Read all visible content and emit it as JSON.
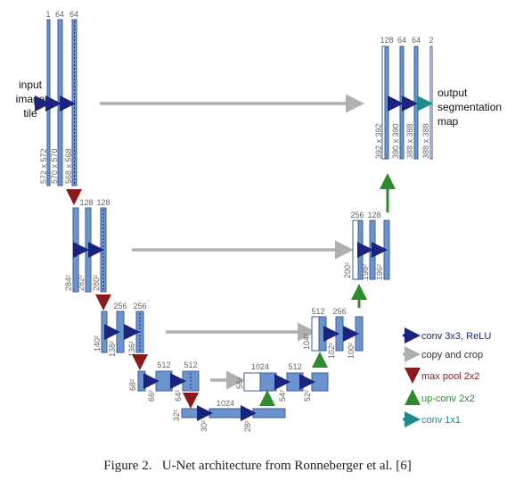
{
  "input_label": [
    "input",
    "image",
    "tile"
  ],
  "output_label": [
    "output",
    "segmentation",
    "map"
  ],
  "channel_counts": {
    "l1_enc": [
      "1",
      "64",
      "64"
    ],
    "l2_enc": [
      "128",
      "128"
    ],
    "l3_enc": [
      "256",
      "256"
    ],
    "l4_enc": [
      "512",
      "512"
    ],
    "l5": [
      "1024"
    ],
    "l4_dec": [
      "1024",
      "512"
    ],
    "l3_dec": [
      "512",
      "256"
    ],
    "l2_dec": [
      "256",
      "128"
    ],
    "l1_dec": [
      "128",
      "64",
      "64",
      "2"
    ]
  },
  "spatial_sizes": {
    "l1_enc": [
      "572 x 572",
      "570 x 570",
      "568 x 568"
    ],
    "l2_enc": [
      "284²",
      "282²",
      "280²"
    ],
    "l3_enc": [
      "140²",
      "138²",
      "136²"
    ],
    "l4_enc": [
      "68²",
      "66²",
      "64²"
    ],
    "l5": [
      "32²",
      "30²",
      "28²"
    ],
    "l4_dec": [
      "56²",
      "54²",
      "52²"
    ],
    "l3_dec": [
      "104²",
      "102²",
      "100²"
    ],
    "l2_dec": [
      "200²",
      "198²",
      "196²"
    ],
    "l1_dec": [
      "392 x 392",
      "390 x 390",
      "388 x 388",
      "388 x 388"
    ]
  },
  "legend": [
    {
      "key": "conv",
      "label": "conv 3x3, ReLU",
      "color": "#1a237e"
    },
    {
      "key": "copy",
      "label": "copy and crop",
      "color": "#b0b0b0"
    },
    {
      "key": "pool",
      "label": "max pool 2x2",
      "color": "#8b1a1a"
    },
    {
      "key": "up",
      "label": "up-conv 2x2",
      "color": "#2e8b2e"
    },
    {
      "key": "conv1",
      "label": "conv 1x1",
      "color": "#1f8a8a"
    }
  ],
  "caption": "Figure 2.   U-Net architecture from Ronneberger et al. [6]",
  "colors": {
    "block_fill": "#6b93cf",
    "block_stroke": "#3f5f94",
    "copied_fill": "#ffffff",
    "text_gray": "#666666"
  }
}
